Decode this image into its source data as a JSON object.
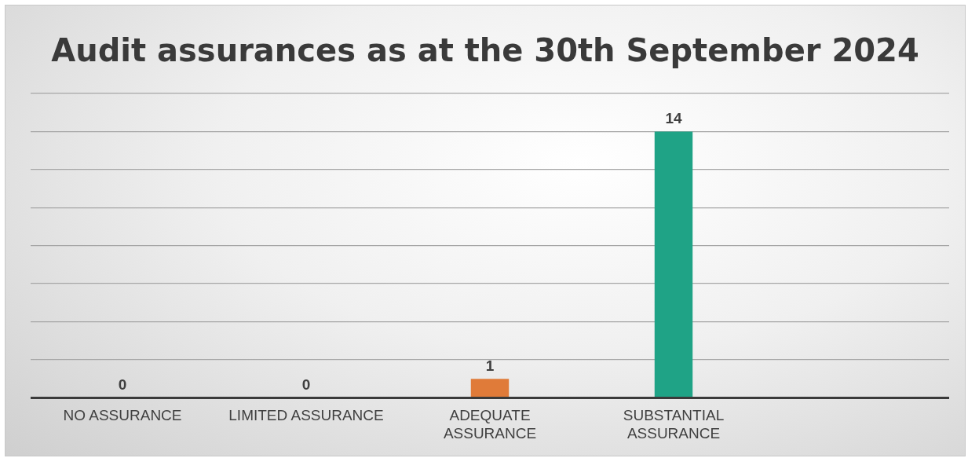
{
  "chart_data": {
    "type": "bar",
    "title": "Audit assurances as at the 30th September 2024",
    "categories": [
      "NO ASSURANCE",
      "LIMITED ASSURANCE",
      "ADEQUATE ASSURANCE",
      "SUBSTANTIAL ASSURANCE",
      null
    ],
    "values": [
      0,
      0,
      1,
      14,
      null
    ],
    "colors": [
      null,
      null,
      "#e07b39",
      "#1fa386",
      null
    ],
    "ylim": [
      0,
      16
    ],
    "grid": "y",
    "legend": false,
    "tick_labels": "x",
    "data_labels": true
  }
}
